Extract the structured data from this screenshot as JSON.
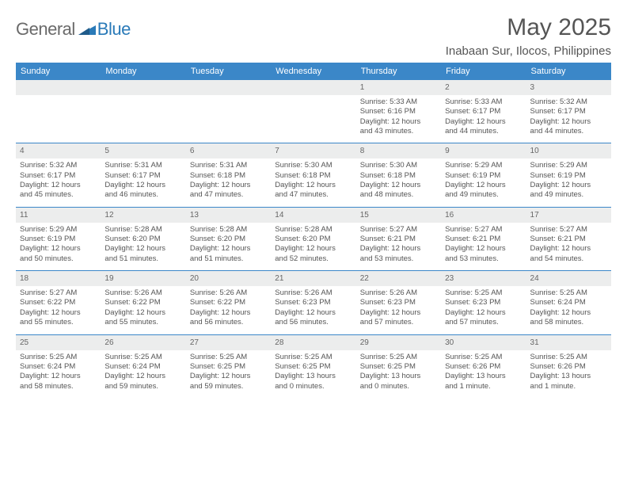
{
  "branding": {
    "general": "General",
    "blue": "Blue"
  },
  "header": {
    "month_title": "May 2025",
    "location": "Inabaan Sur, Ilocos, Philippines"
  },
  "colors": {
    "header_bg": "#3b87c8",
    "header_text": "#ffffff",
    "daynum_bg": "#eceded",
    "text": "#555555",
    "border": "#3b87c8",
    "logo_gray": "#6a6a6a",
    "logo_blue": "#2a7ab8"
  },
  "day_names": [
    "Sunday",
    "Monday",
    "Tuesday",
    "Wednesday",
    "Thursday",
    "Friday",
    "Saturday"
  ],
  "weeks": [
    [
      {
        "empty": true
      },
      {
        "empty": true
      },
      {
        "empty": true
      },
      {
        "empty": true
      },
      {
        "n": "1",
        "sr": "Sunrise: 5:33 AM",
        "ss": "Sunset: 6:16 PM",
        "d1": "Daylight: 12 hours",
        "d2": "and 43 minutes."
      },
      {
        "n": "2",
        "sr": "Sunrise: 5:33 AM",
        "ss": "Sunset: 6:17 PM",
        "d1": "Daylight: 12 hours",
        "d2": "and 44 minutes."
      },
      {
        "n": "3",
        "sr": "Sunrise: 5:32 AM",
        "ss": "Sunset: 6:17 PM",
        "d1": "Daylight: 12 hours",
        "d2": "and 44 minutes."
      }
    ],
    [
      {
        "n": "4",
        "sr": "Sunrise: 5:32 AM",
        "ss": "Sunset: 6:17 PM",
        "d1": "Daylight: 12 hours",
        "d2": "and 45 minutes."
      },
      {
        "n": "5",
        "sr": "Sunrise: 5:31 AM",
        "ss": "Sunset: 6:17 PM",
        "d1": "Daylight: 12 hours",
        "d2": "and 46 minutes."
      },
      {
        "n": "6",
        "sr": "Sunrise: 5:31 AM",
        "ss": "Sunset: 6:18 PM",
        "d1": "Daylight: 12 hours",
        "d2": "and 47 minutes."
      },
      {
        "n": "7",
        "sr": "Sunrise: 5:30 AM",
        "ss": "Sunset: 6:18 PM",
        "d1": "Daylight: 12 hours",
        "d2": "and 47 minutes."
      },
      {
        "n": "8",
        "sr": "Sunrise: 5:30 AM",
        "ss": "Sunset: 6:18 PM",
        "d1": "Daylight: 12 hours",
        "d2": "and 48 minutes."
      },
      {
        "n": "9",
        "sr": "Sunrise: 5:29 AM",
        "ss": "Sunset: 6:19 PM",
        "d1": "Daylight: 12 hours",
        "d2": "and 49 minutes."
      },
      {
        "n": "10",
        "sr": "Sunrise: 5:29 AM",
        "ss": "Sunset: 6:19 PM",
        "d1": "Daylight: 12 hours",
        "d2": "and 49 minutes."
      }
    ],
    [
      {
        "n": "11",
        "sr": "Sunrise: 5:29 AM",
        "ss": "Sunset: 6:19 PM",
        "d1": "Daylight: 12 hours",
        "d2": "and 50 minutes."
      },
      {
        "n": "12",
        "sr": "Sunrise: 5:28 AM",
        "ss": "Sunset: 6:20 PM",
        "d1": "Daylight: 12 hours",
        "d2": "and 51 minutes."
      },
      {
        "n": "13",
        "sr": "Sunrise: 5:28 AM",
        "ss": "Sunset: 6:20 PM",
        "d1": "Daylight: 12 hours",
        "d2": "and 51 minutes."
      },
      {
        "n": "14",
        "sr": "Sunrise: 5:28 AM",
        "ss": "Sunset: 6:20 PM",
        "d1": "Daylight: 12 hours",
        "d2": "and 52 minutes."
      },
      {
        "n": "15",
        "sr": "Sunrise: 5:27 AM",
        "ss": "Sunset: 6:21 PM",
        "d1": "Daylight: 12 hours",
        "d2": "and 53 minutes."
      },
      {
        "n": "16",
        "sr": "Sunrise: 5:27 AM",
        "ss": "Sunset: 6:21 PM",
        "d1": "Daylight: 12 hours",
        "d2": "and 53 minutes."
      },
      {
        "n": "17",
        "sr": "Sunrise: 5:27 AM",
        "ss": "Sunset: 6:21 PM",
        "d1": "Daylight: 12 hours",
        "d2": "and 54 minutes."
      }
    ],
    [
      {
        "n": "18",
        "sr": "Sunrise: 5:27 AM",
        "ss": "Sunset: 6:22 PM",
        "d1": "Daylight: 12 hours",
        "d2": "and 55 minutes."
      },
      {
        "n": "19",
        "sr": "Sunrise: 5:26 AM",
        "ss": "Sunset: 6:22 PM",
        "d1": "Daylight: 12 hours",
        "d2": "and 55 minutes."
      },
      {
        "n": "20",
        "sr": "Sunrise: 5:26 AM",
        "ss": "Sunset: 6:22 PM",
        "d1": "Daylight: 12 hours",
        "d2": "and 56 minutes."
      },
      {
        "n": "21",
        "sr": "Sunrise: 5:26 AM",
        "ss": "Sunset: 6:23 PM",
        "d1": "Daylight: 12 hours",
        "d2": "and 56 minutes."
      },
      {
        "n": "22",
        "sr": "Sunrise: 5:26 AM",
        "ss": "Sunset: 6:23 PM",
        "d1": "Daylight: 12 hours",
        "d2": "and 57 minutes."
      },
      {
        "n": "23",
        "sr": "Sunrise: 5:25 AM",
        "ss": "Sunset: 6:23 PM",
        "d1": "Daylight: 12 hours",
        "d2": "and 57 minutes."
      },
      {
        "n": "24",
        "sr": "Sunrise: 5:25 AM",
        "ss": "Sunset: 6:24 PM",
        "d1": "Daylight: 12 hours",
        "d2": "and 58 minutes."
      }
    ],
    [
      {
        "n": "25",
        "sr": "Sunrise: 5:25 AM",
        "ss": "Sunset: 6:24 PM",
        "d1": "Daylight: 12 hours",
        "d2": "and 58 minutes."
      },
      {
        "n": "26",
        "sr": "Sunrise: 5:25 AM",
        "ss": "Sunset: 6:24 PM",
        "d1": "Daylight: 12 hours",
        "d2": "and 59 minutes."
      },
      {
        "n": "27",
        "sr": "Sunrise: 5:25 AM",
        "ss": "Sunset: 6:25 PM",
        "d1": "Daylight: 12 hours",
        "d2": "and 59 minutes."
      },
      {
        "n": "28",
        "sr": "Sunrise: 5:25 AM",
        "ss": "Sunset: 6:25 PM",
        "d1": "Daylight: 13 hours",
        "d2": "and 0 minutes."
      },
      {
        "n": "29",
        "sr": "Sunrise: 5:25 AM",
        "ss": "Sunset: 6:25 PM",
        "d1": "Daylight: 13 hours",
        "d2": "and 0 minutes."
      },
      {
        "n": "30",
        "sr": "Sunrise: 5:25 AM",
        "ss": "Sunset: 6:26 PM",
        "d1": "Daylight: 13 hours",
        "d2": "and 1 minute."
      },
      {
        "n": "31",
        "sr": "Sunrise: 5:25 AM",
        "ss": "Sunset: 6:26 PM",
        "d1": "Daylight: 13 hours",
        "d2": "and 1 minute."
      }
    ]
  ]
}
